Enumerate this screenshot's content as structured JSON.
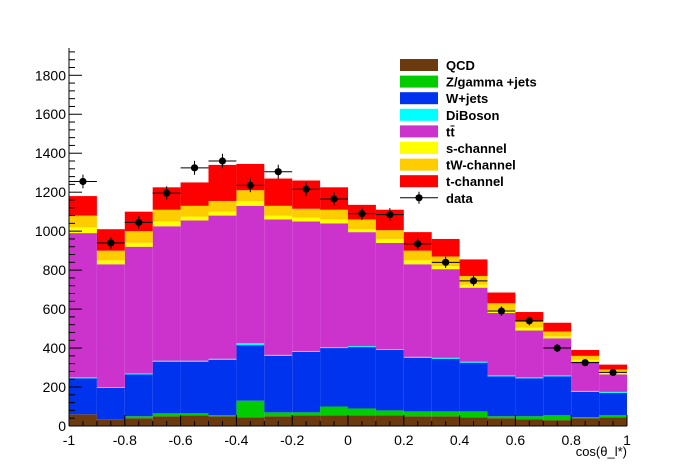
{
  "chart_data": {
    "type": "bar",
    "stacked": true,
    "xlabel": "cos(θ_l*)",
    "xlim": [
      -1,
      1
    ],
    "ylim": [
      0,
      1940
    ],
    "x_ticks": [
      "-1",
      "-0.8",
      "-0.6",
      "-0.4",
      "-0.2",
      "0",
      "0.2",
      "0.4",
      "0.6",
      "0.8",
      "1"
    ],
    "y_ticks": [
      "0",
      "200",
      "400",
      "600",
      "800",
      "1000",
      "1200",
      "1400",
      "1600",
      "1800"
    ],
    "bin_edges": [
      -1.0,
      -0.9,
      -0.8,
      -0.7,
      -0.6,
      -0.5,
      -0.4,
      -0.3,
      -0.2,
      -0.1,
      0.0,
      0.1,
      0.2,
      0.3,
      0.4,
      0.5,
      0.6,
      0.7,
      0.8,
      0.9,
      1.0
    ],
    "legend_position": "top-right",
    "series": [
      {
        "name": "QCD",
        "color": "#6b3a0e",
        "values": [
          60,
          35,
          40,
          50,
          55,
          50,
          45,
          50,
          55,
          55,
          55,
          55,
          50,
          50,
          45,
          40,
          35,
          30,
          40,
          45
        ]
      },
      {
        "name": "Z/gamma +jets",
        "color": "#00cc00",
        "values": [
          0,
          0,
          10,
          15,
          10,
          5,
          85,
          20,
          15,
          45,
          35,
          25,
          25,
          25,
          30,
          10,
          15,
          25,
          5,
          10
        ]
      },
      {
        "name": "W+jets",
        "color": "#0033ee",
        "values": [
          185,
          160,
          215,
          265,
          265,
          285,
          285,
          290,
          310,
          300,
          315,
          310,
          275,
          270,
          250,
          205,
          195,
          200,
          130,
          115
        ]
      },
      {
        "name": "DiBoson",
        "color": "#00ffff",
        "values": [
          5,
          5,
          5,
          5,
          5,
          5,
          10,
          5,
          5,
          5,
          5,
          5,
          5,
          5,
          5,
          5,
          5,
          5,
          5,
          5
        ]
      },
      {
        "name": "tt̄",
        "color": "#cc33cc",
        "values": [
          740,
          630,
          650,
          690,
          720,
          735,
          705,
          695,
          665,
          635,
          585,
          545,
          475,
          455,
          380,
          320,
          240,
          190,
          150,
          90
        ]
      },
      {
        "name": "s-channel",
        "color": "#ffff00",
        "values": [
          30,
          20,
          20,
          25,
          20,
          20,
          25,
          20,
          20,
          20,
          15,
          20,
          20,
          15,
          15,
          15,
          15,
          10,
          10,
          10
        ]
      },
      {
        "name": "tW-channel",
        "color": "#ffcc00",
        "values": [
          60,
          50,
          60,
          60,
          55,
          55,
          55,
          50,
          45,
          50,
          50,
          45,
          50,
          50,
          45,
          35,
          30,
          25,
          20,
          15
        ]
      },
      {
        "name": "t-channel",
        "color": "#ff0000",
        "values": [
          100,
          110,
          100,
          115,
          120,
          185,
          135,
          140,
          145,
          115,
          75,
          105,
          95,
          90,
          85,
          55,
          50,
          45,
          30,
          25
        ]
      }
    ],
    "data_points": {
      "name": "data",
      "x": [
        -0.95,
        -0.85,
        -0.75,
        -0.65,
        -0.55,
        -0.45,
        -0.35,
        -0.25,
        -0.15,
        -0.05,
        0.05,
        0.15,
        0.25,
        0.35,
        0.45,
        0.55,
        0.65,
        0.75,
        0.85,
        0.95
      ],
      "y": [
        1255,
        940,
        1045,
        1195,
        1325,
        1360,
        1235,
        1305,
        1215,
        1165,
        1090,
        1085,
        935,
        840,
        745,
        590,
        540,
        400,
        325,
        275
      ],
      "err": [
        35,
        30,
        32,
        35,
        36,
        37,
        35,
        36,
        35,
        34,
        33,
        33,
        30,
        29,
        27,
        24,
        23,
        20,
        18,
        17
      ],
      "color": "#000000"
    }
  }
}
